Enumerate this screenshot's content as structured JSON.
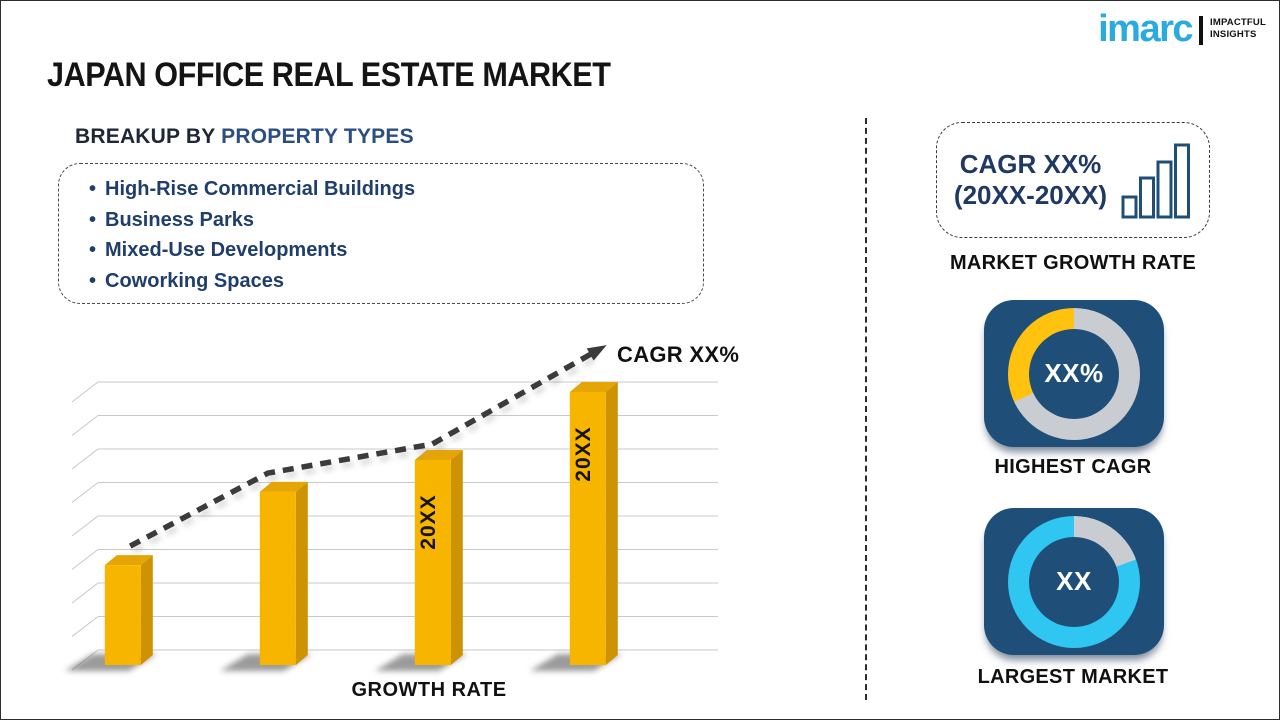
{
  "header": {
    "title": "JAPAN OFFICE REAL ESTATE MARKET",
    "logo": {
      "brand": "imarc",
      "tagline1": "IMPACTFUL",
      "tagline2": "INSIGHTS",
      "brand_color": "#29ABE2"
    }
  },
  "breakup": {
    "prefix": "BREAKUP BY",
    "highlight": "PROPERTY TYPES",
    "bullet": "•",
    "items": [
      "High-Rise Commercial Buildings",
      "Business Parks",
      "Mixed-Use Developments",
      "Coworking Spaces"
    ]
  },
  "chart_data": {
    "type": "bar",
    "title": "",
    "xlabel": "GROWTH RATE",
    "ylabel": "",
    "categories": [
      "",
      "",
      "20XX",
      "20XX"
    ],
    "values": [
      0.32,
      0.555,
      0.657,
      0.875
    ],
    "ylim": [
      0,
      1
    ],
    "grid": true,
    "bar_color": "#F7B500",
    "bar_side_color": "#CE9302",
    "bar_top_color": "#E5A504",
    "trend": {
      "label": "CAGR XX%",
      "color": "#3B3B3B",
      "points": [
        [
          0.052,
          0.381
        ],
        [
          0.274,
          0.615
        ],
        [
          0.539,
          0.708
        ],
        [
          0.798,
          1.0
        ]
      ]
    }
  },
  "sidebar": {
    "growth_box": {
      "line1": "CAGR XX%",
      "line2": "(20XX-20XX)",
      "label": "MARKET GROWTH RATE",
      "icon": "growth-bars-icon",
      "text_color": "#1F3864"
    },
    "highest_cagr": {
      "label": "HIGHEST CAGR",
      "center_text": "XX%",
      "card_color": "#1F4E78",
      "ring_color": "#C9CDD2",
      "segment_color": "#FFC20E",
      "segment_start_deg": 245,
      "segment_end_deg": 360
    },
    "largest_market": {
      "label": "LARGEST MARKET",
      "center_text": "XX",
      "card_color": "#1F4E78",
      "ring_color": "#30C6F2",
      "segment_color": "#C9CDD2",
      "segment_start_deg": 0,
      "segment_end_deg": 70
    }
  }
}
